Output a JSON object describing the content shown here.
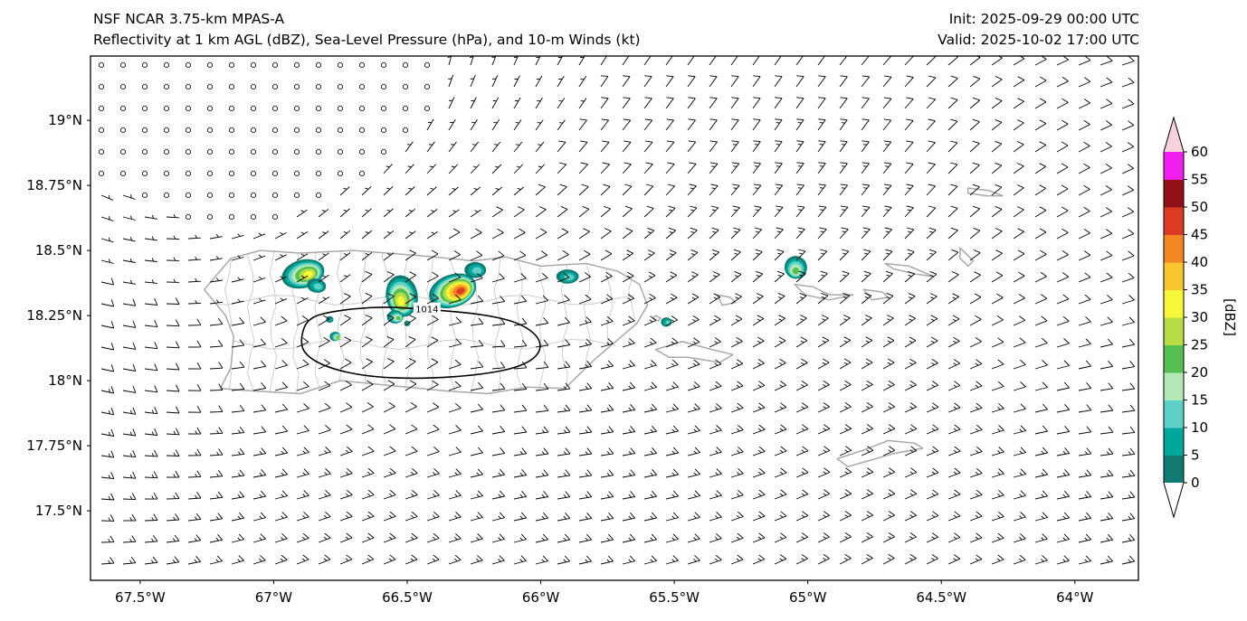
{
  "header": {
    "model_line": "NSF NCAR 3.75-km MPAS-A",
    "fields_line": "Reflectivity at 1 km AGL (dBZ), Sea-Level Pressure (hPa), and 10-m Winds (kt)",
    "init_line": "Init: 2025-09-29 00:00 UTC",
    "valid_line": "Valid: 2025-10-02 17:00 UTC"
  },
  "chart_data": {
    "type": "map",
    "subtype": "model reflectivity + SLP contour + 10-m wind barbs over Puerto Rico and Virgin Islands",
    "title": "Reflectivity at 1 km AGL (dBZ), Sea-Level Pressure (hPa), and 10-m Winds (kt)",
    "model": "NSF NCAR 3.75-km MPAS-A",
    "init": "2025-09-29 00:00 UTC",
    "valid": "2025-10-02 17:00 UTC",
    "x_axis": {
      "range_lon": [
        -67.686,
        -63.762
      ],
      "ticks": [
        {
          "lon": -67.5,
          "label": "67.5°W"
        },
        {
          "lon": -67.0,
          "label": "67°W"
        },
        {
          "lon": -66.5,
          "label": "66.5°W"
        },
        {
          "lon": -66.0,
          "label": "66°W"
        },
        {
          "lon": -65.5,
          "label": "65.5°W"
        },
        {
          "lon": -65.0,
          "label": "65°W"
        },
        {
          "lon": -64.5,
          "label": "64.5°W"
        },
        {
          "lon": -64.0,
          "label": "64°W"
        }
      ]
    },
    "y_axis": {
      "range_lat": [
        17.233,
        19.247
      ],
      "ticks": [
        {
          "lat": 19.0,
          "label": "19°N"
        },
        {
          "lat": 18.75,
          "label": "18.75°N"
        },
        {
          "lat": 18.5,
          "label": "18.5°N"
        },
        {
          "lat": 18.25,
          "label": "18.25°N"
        },
        {
          "lat": 18.0,
          "label": "18°N"
        },
        {
          "lat": 17.75,
          "label": "17.75°N"
        },
        {
          "lat": 17.5,
          "label": "17.5°N"
        }
      ]
    },
    "colorbar": {
      "label": "[dBZ]",
      "tick_values": [
        0,
        5,
        10,
        15,
        20,
        25,
        30,
        35,
        40,
        45,
        50,
        55,
        60
      ],
      "band_colors": [
        "#107a70",
        "#00a79d",
        "#5fd0c6",
        "#b2e8b5",
        "#54c054",
        "#b8dc45",
        "#f7f73a",
        "#f8c52e",
        "#f28722",
        "#db3b23",
        "#931016",
        "#f01ef0"
      ],
      "under_color": "#ffffff",
      "over_color": "#f6d3da"
    },
    "slp_contours": [
      {
        "label": "1014",
        "label_at": [
          -66.426,
          18.276
        ],
        "points_lonlat": [
          [
            -66.9,
            18.163
          ],
          [
            -66.873,
            18.24
          ],
          [
            -66.778,
            18.268
          ],
          [
            -66.602,
            18.285
          ],
          [
            -66.426,
            18.274
          ],
          [
            -66.229,
            18.257
          ],
          [
            -66.087,
            18.226
          ],
          [
            -66.006,
            18.17
          ],
          [
            -65.999,
            18.108
          ],
          [
            -66.067,
            18.056
          ],
          [
            -66.212,
            18.024
          ],
          [
            -66.433,
            18.007
          ],
          [
            -66.643,
            18.014
          ],
          [
            -66.799,
            18.049
          ],
          [
            -66.887,
            18.101
          ]
        ]
      }
    ],
    "reflectivity_cells": [
      {
        "lon": -66.89,
        "lat": 18.41,
        "r_deg": 0.06,
        "max_dbz": 35,
        "sx": 1.35,
        "rot": -15
      },
      {
        "lon": -66.84,
        "lat": 18.365,
        "r_deg": 0.03,
        "max_dbz": 15,
        "sx": 1.2,
        "rot": 10
      },
      {
        "lon": -66.52,
        "lat": 18.325,
        "r_deg": 0.068,
        "max_dbz": 35,
        "sx": 1.15,
        "rot": 80
      },
      {
        "lon": -66.545,
        "lat": 18.245,
        "r_deg": 0.028,
        "max_dbz": 25,
        "sx": 1.1,
        "rot": 0
      },
      {
        "lon": -66.33,
        "lat": 18.345,
        "r_deg": 0.07,
        "max_dbz": 50,
        "sx": 1.3,
        "rot": -20
      },
      {
        "lon": -66.245,
        "lat": 18.425,
        "r_deg": 0.034,
        "max_dbz": 15,
        "sx": 1.2,
        "rot": 0
      },
      {
        "lon": -65.9,
        "lat": 18.4,
        "r_deg": 0.03,
        "max_dbz": 15,
        "sx": 1.4,
        "rot": 0
      },
      {
        "lon": -65.045,
        "lat": 18.435,
        "r_deg": 0.048,
        "max_dbz": 25,
        "sx": 0.9,
        "rot": 70
      },
      {
        "lon": -65.53,
        "lat": 18.225,
        "r_deg": 0.02,
        "max_dbz": 15,
        "sx": 1.0,
        "rot": 0
      },
      {
        "lon": -66.77,
        "lat": 18.17,
        "r_deg": 0.02,
        "max_dbz": 30,
        "sx": 1.0,
        "rot": 0
      },
      {
        "lon": -66.79,
        "lat": 18.235,
        "r_deg": 0.014,
        "max_dbz": 10,
        "sx": 1.0,
        "rot": 0
      },
      {
        "lon": -66.5,
        "lat": 18.22,
        "r_deg": 0.012,
        "max_dbz": 10,
        "sx": 1.0,
        "rot": 0
      }
    ],
    "coastlines": {
      "puerto_rico": [
        [
          -67.16,
          18.47
        ],
        [
          -67.05,
          18.5
        ],
        [
          -66.9,
          18.49
        ],
        [
          -66.7,
          18.5
        ],
        [
          -66.45,
          18.48
        ],
        [
          -66.25,
          18.46
        ],
        [
          -66.13,
          18.475
        ],
        [
          -66.0,
          18.44
        ],
        [
          -65.83,
          18.45
        ],
        [
          -65.71,
          18.42
        ],
        [
          -65.63,
          18.37
        ],
        [
          -65.6,
          18.29
        ],
        [
          -65.64,
          18.22
        ],
        [
          -65.72,
          18.15
        ],
        [
          -65.8,
          18.08
        ],
        [
          -65.91,
          17.97
        ],
        [
          -66.05,
          17.975
        ],
        [
          -66.2,
          17.95
        ],
        [
          -66.35,
          17.96
        ],
        [
          -66.55,
          17.98
        ],
        [
          -66.75,
          18.0
        ],
        [
          -66.9,
          17.95
        ],
        [
          -67.07,
          17.96
        ],
        [
          -67.2,
          17.97
        ],
        [
          -67.16,
          18.05
        ],
        [
          -67.15,
          18.17
        ],
        [
          -67.18,
          18.25
        ],
        [
          -67.26,
          18.35
        ]
      ],
      "vieques": [
        [
          -65.57,
          18.12
        ],
        [
          -65.47,
          18.15
        ],
        [
          -65.36,
          18.12
        ],
        [
          -65.28,
          18.1
        ],
        [
          -65.33,
          18.07
        ],
        [
          -65.45,
          18.09
        ],
        [
          -65.52,
          18.09
        ]
      ],
      "culebra": [
        [
          -65.34,
          18.33
        ],
        [
          -65.29,
          18.32
        ],
        [
          -65.27,
          18.3
        ],
        [
          -65.32,
          18.29
        ]
      ],
      "palominos": [
        [
          -65.57,
          18.25
        ],
        [
          -65.55,
          18.24
        ],
        [
          -65.56,
          18.23
        ],
        [
          -65.58,
          18.24
        ]
      ],
      "st_thomas": [
        [
          -65.05,
          18.37
        ],
        [
          -64.98,
          18.36
        ],
        [
          -64.92,
          18.33
        ],
        [
          -64.83,
          18.33
        ],
        [
          -64.92,
          18.31
        ],
        [
          -65.01,
          18.33
        ]
      ],
      "st_john": [
        [
          -64.79,
          18.35
        ],
        [
          -64.72,
          18.34
        ],
        [
          -64.7,
          18.32
        ],
        [
          -64.76,
          18.31
        ]
      ],
      "tortola": [
        [
          -64.71,
          18.45
        ],
        [
          -64.62,
          18.44
        ],
        [
          -64.53,
          18.4
        ],
        [
          -64.6,
          18.41
        ],
        [
          -64.68,
          18.43
        ]
      ],
      "virgin_gorda": [
        [
          -64.43,
          18.51
        ],
        [
          -64.38,
          18.46
        ],
        [
          -64.4,
          18.44
        ],
        [
          -64.43,
          18.47
        ]
      ],
      "anegada": [
        [
          -64.4,
          18.74
        ],
        [
          -64.32,
          18.73
        ],
        [
          -64.27,
          18.71
        ],
        [
          -64.33,
          18.71
        ],
        [
          -64.4,
          18.72
        ]
      ],
      "st_croix": [
        [
          -64.89,
          17.7
        ],
        [
          -64.8,
          17.73
        ],
        [
          -64.7,
          17.77
        ],
        [
          -64.6,
          17.76
        ],
        [
          -64.57,
          17.74
        ],
        [
          -64.68,
          17.72
        ],
        [
          -64.78,
          17.69
        ],
        [
          -64.85,
          17.67
        ]
      ]
    },
    "wind_field": {
      "description": "10-m winds (kt): easterly trades ~10-16 kt over most of domain, calm swirl region in northwest corner shown as circles, weak cyclonic turning near Puerto Rico",
      "grid_spacing_px": 24,
      "base_speed_kt": 13,
      "base_from_deg_math": 15,
      "speed_variation": 0.22,
      "calm_center": {
        "lon": -67.15,
        "lat": 19.02
      },
      "calm_aspect_x": 1.6,
      "calm_sigma2": 2.0,
      "ring_strength": 0.5,
      "secondary_center": {
        "lon": -66.38,
        "lat": 18.15
      },
      "secondary_sigma2": 0.22,
      "secondary_strength": 0.45
    }
  }
}
